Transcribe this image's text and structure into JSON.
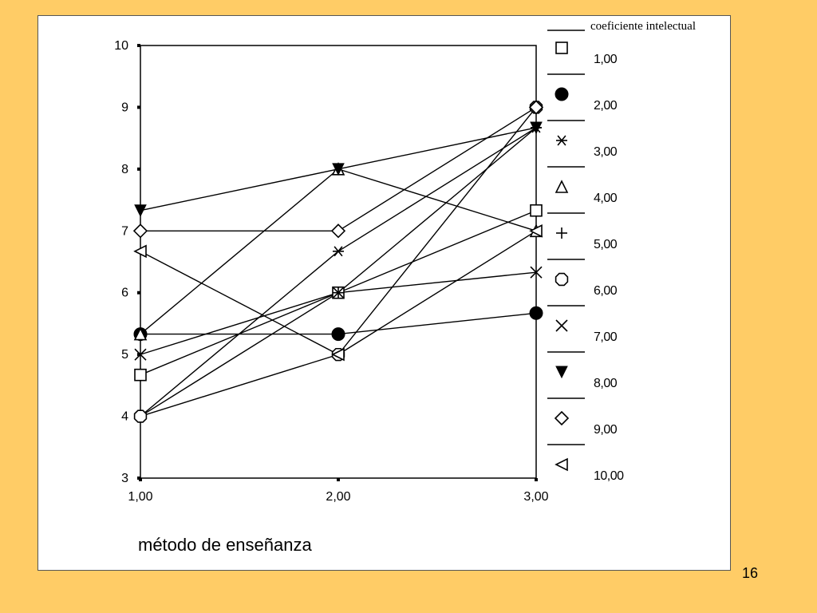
{
  "slide_number": "16",
  "chart_data": {
    "type": "line",
    "xlabel": "método de enseñanza",
    "ylabel": "",
    "x": [
      1,
      2,
      3
    ],
    "x_tick_labels": [
      "1,00",
      "2,00",
      "3,00"
    ],
    "y_ticks": [
      3,
      4,
      5,
      6,
      7,
      8,
      9,
      10
    ],
    "y_tick_labels": [
      "3",
      "4",
      "5",
      "6",
      "7",
      "8",
      "9",
      "10"
    ],
    "ylim": [
      3,
      10
    ],
    "grid": false,
    "legend_position": "right",
    "legend_title": "coeficiente intelectual",
    "series": [
      {
        "name": "1,00",
        "marker": "square",
        "values": [
          4.67,
          6.0,
          7.33
        ]
      },
      {
        "name": "2,00",
        "marker": "filled-circle",
        "values": [
          5.33,
          5.33,
          5.67
        ]
      },
      {
        "name": "3,00",
        "marker": "asterisk",
        "values": [
          4.0,
          6.67,
          8.67
        ]
      },
      {
        "name": "4,00",
        "marker": "triangle-up",
        "values": [
          5.33,
          8.0,
          7.0
        ]
      },
      {
        "name": "5,00",
        "marker": "plus",
        "values": [
          4.0,
          6.0,
          8.67
        ]
      },
      {
        "name": "6,00",
        "marker": "octagon",
        "values": [
          4.0,
          5.0,
          9.0
        ]
      },
      {
        "name": "7,00",
        "marker": "x-cross",
        "values": [
          5.0,
          6.0,
          6.33
        ]
      },
      {
        "name": "8,00",
        "marker": "triangle-down",
        "values": [
          7.33,
          8.0,
          8.67
        ]
      },
      {
        "name": "9,00",
        "marker": "diamond",
        "values": [
          7.0,
          7.0,
          9.0
        ]
      },
      {
        "name": "10,00",
        "marker": "triangle-left",
        "values": [
          6.67,
          5.0,
          7.0
        ]
      }
    ]
  }
}
